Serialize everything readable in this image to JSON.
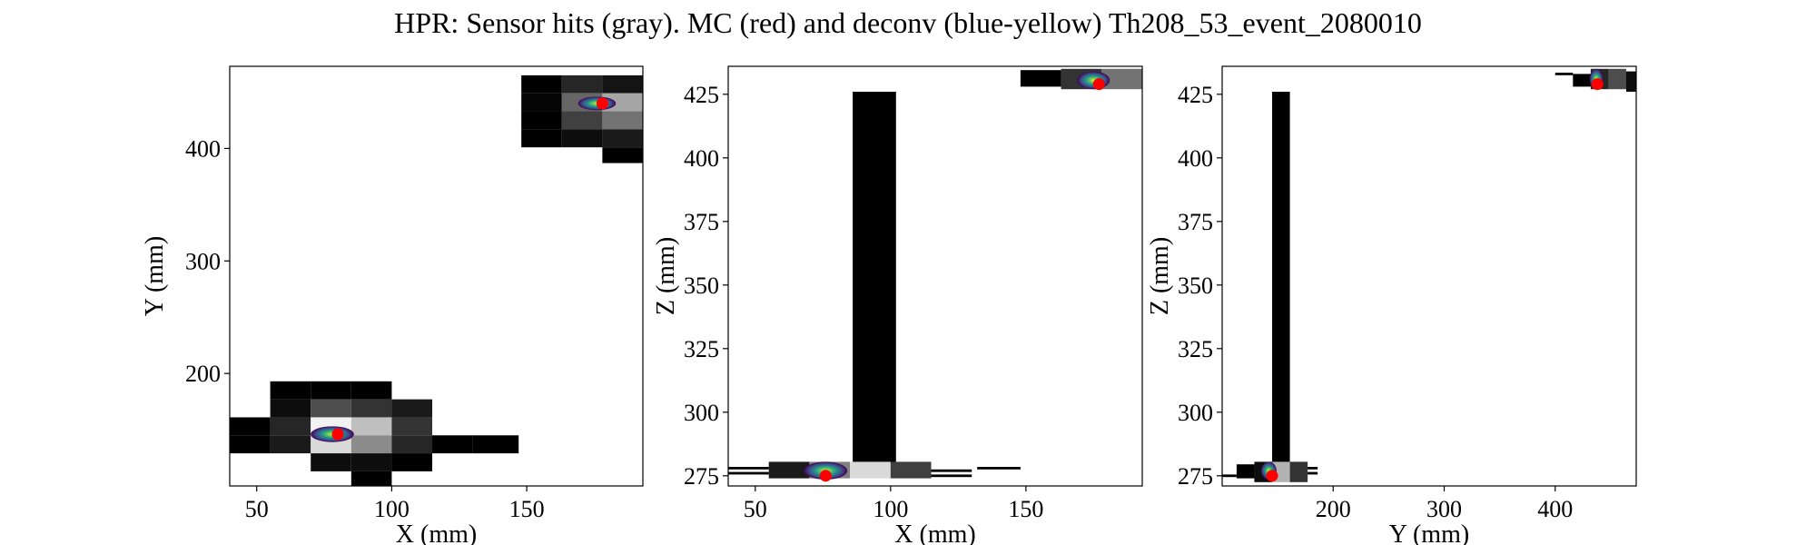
{
  "chart_data": {
    "type": "heatmap",
    "title": "HPR: Sensor hits (gray). MC (red) and deconv (blue-yellow) Th208_53_event_2080010",
    "colors": {
      "mc": "#ff0000",
      "sensor_scale": "gray",
      "deconv_scale": "viridis"
    },
    "panels": [
      {
        "id": "xy",
        "xlabel": "X (mm)",
        "ylabel": "Y (mm)",
        "xlim": [
          40,
          193
        ],
        "ylim": [
          100,
          473
        ],
        "xticks": [
          50,
          100,
          150
        ],
        "yticks": [
          200,
          300,
          400
        ],
        "sensor_hits": [
          {
            "x": 148,
            "y": 465,
            "w": 15,
            "h": 16,
            "v": 0.0
          },
          {
            "x": 163,
            "y": 465,
            "w": 15,
            "h": 16,
            "v": 0.15
          },
          {
            "x": 178,
            "y": 465,
            "w": 15,
            "h": 16,
            "v": 0.08
          },
          {
            "x": 148,
            "y": 449,
            "w": 15,
            "h": 16,
            "v": 0.02
          },
          {
            "x": 163,
            "y": 449,
            "w": 15,
            "h": 16,
            "v": 0.4
          },
          {
            "x": 178,
            "y": 449,
            "w": 15,
            "h": 16,
            "v": 0.65
          },
          {
            "x": 148,
            "y": 433,
            "w": 15,
            "h": 16,
            "v": 0.0
          },
          {
            "x": 163,
            "y": 433,
            "w": 15,
            "h": 16,
            "v": 0.25
          },
          {
            "x": 178,
            "y": 433,
            "w": 15,
            "h": 16,
            "v": 0.45
          },
          {
            "x": 148,
            "y": 417,
            "w": 15,
            "h": 16,
            "v": 0.0
          },
          {
            "x": 163,
            "y": 417,
            "w": 15,
            "h": 16,
            "v": 0.05
          },
          {
            "x": 178,
            "y": 417,
            "w": 15,
            "h": 16,
            "v": 0.1
          },
          {
            "x": 178,
            "y": 401,
            "w": 15,
            "h": 14,
            "v": 0.0
          },
          {
            "x": 55,
            "y": 193,
            "w": 15,
            "h": 16,
            "v": 0.0
          },
          {
            "x": 70,
            "y": 193,
            "w": 15,
            "h": 16,
            "v": 0.0
          },
          {
            "x": 85,
            "y": 193,
            "w": 15,
            "h": 16,
            "v": 0.0
          },
          {
            "x": 55,
            "y": 177,
            "w": 15,
            "h": 16,
            "v": 0.05
          },
          {
            "x": 70,
            "y": 177,
            "w": 15,
            "h": 16,
            "v": 0.3
          },
          {
            "x": 85,
            "y": 177,
            "w": 15,
            "h": 16,
            "v": 0.2
          },
          {
            "x": 100,
            "y": 177,
            "w": 15,
            "h": 16,
            "v": 0.1
          },
          {
            "x": 40,
            "y": 161,
            "w": 15,
            "h": 16,
            "v": 0.0
          },
          {
            "x": 55,
            "y": 161,
            "w": 15,
            "h": 16,
            "v": 0.15
          },
          {
            "x": 70,
            "y": 161,
            "w": 15,
            "h": 16,
            "v": 0.95
          },
          {
            "x": 85,
            "y": 161,
            "w": 15,
            "h": 16,
            "v": 0.75
          },
          {
            "x": 100,
            "y": 161,
            "w": 15,
            "h": 16,
            "v": 0.2
          },
          {
            "x": 40,
            "y": 145,
            "w": 15,
            "h": 16,
            "v": 0.0
          },
          {
            "x": 55,
            "y": 145,
            "w": 15,
            "h": 16,
            "v": 0.1
          },
          {
            "x": 70,
            "y": 145,
            "w": 15,
            "h": 16,
            "v": 0.85
          },
          {
            "x": 85,
            "y": 145,
            "w": 15,
            "h": 16,
            "v": 0.55
          },
          {
            "x": 100,
            "y": 145,
            "w": 15,
            "h": 16,
            "v": 0.15
          },
          {
            "x": 115,
            "y": 145,
            "w": 15,
            "h": 16,
            "v": 0.0
          },
          {
            "x": 130,
            "y": 145,
            "w": 17,
            "h": 16,
            "v": 0.0
          },
          {
            "x": 70,
            "y": 129,
            "w": 15,
            "h": 16,
            "v": 0.05
          },
          {
            "x": 85,
            "y": 129,
            "w": 15,
            "h": 16,
            "v": 0.05
          },
          {
            "x": 100,
            "y": 129,
            "w": 15,
            "h": 16,
            "v": 0.0
          },
          {
            "x": 85,
            "y": 113,
            "w": 15,
            "h": 13,
            "v": 0.0
          }
        ],
        "deconv_blobs": [
          {
            "x": 176,
            "y": 440,
            "rx": 7,
            "ry": 6
          },
          {
            "x": 78,
            "y": 146,
            "rx": 8,
            "ry": 7
          }
        ],
        "mc_points": [
          {
            "x": 178,
            "y": 440
          },
          {
            "x": 80,
            "y": 146
          }
        ]
      },
      {
        "id": "xz",
        "xlabel": "X (mm)",
        "ylabel": "Z (mm)",
        "xlim": [
          40,
          193
        ],
        "ylim": [
          271,
          436
        ],
        "xticks": [
          50,
          100,
          150
        ],
        "yticks": [
          275,
          300,
          325,
          350,
          375,
          400,
          425
        ],
        "sensor_hits": [
          {
            "x": 86,
            "y": 426,
            "w": 16,
            "h": 146,
            "v": 0.0
          },
          {
            "x": 55,
            "y": 280.5,
            "w": 15,
            "h": 6.5,
            "v": 0.1
          },
          {
            "x": 70,
            "y": 280.5,
            "w": 15,
            "h": 6.5,
            "v": 0.5
          },
          {
            "x": 85,
            "y": 280.5,
            "w": 15,
            "h": 6.5,
            "v": 0.85
          },
          {
            "x": 100,
            "y": 280.5,
            "w": 15,
            "h": 6.5,
            "v": 0.25
          },
          {
            "x": 40,
            "y": 278.5,
            "w": 15,
            "h": 1,
            "v": 0.0
          },
          {
            "x": 40,
            "y": 276.5,
            "w": 15,
            "h": 1,
            "v": 0.0
          },
          {
            "x": 115,
            "y": 277.5,
            "w": 15,
            "h": 1,
            "v": 0.0
          },
          {
            "x": 115,
            "y": 275.5,
            "w": 15,
            "h": 1,
            "v": 0.0
          },
          {
            "x": 132,
            "y": 278.5,
            "w": 16,
            "h": 1,
            "v": 0.0
          },
          {
            "x": 148,
            "y": 434.5,
            "w": 15,
            "h": 6.5,
            "v": 0.0
          },
          {
            "x": 163,
            "y": 435,
            "w": 15,
            "h": 8,
            "v": 0.2
          },
          {
            "x": 178,
            "y": 435,
            "w": 15,
            "h": 8,
            "v": 0.45
          }
        ],
        "deconv_blobs": [
          {
            "x": 175,
            "y": 430.5,
            "rx": 6,
            "ry": 3.5
          },
          {
            "x": 76,
            "y": 277,
            "rx": 8,
            "ry": 3.5
          }
        ],
        "mc_points": [
          {
            "x": 177,
            "y": 429
          },
          {
            "x": 76,
            "y": 275
          }
        ]
      },
      {
        "id": "yz",
        "xlabel": "Y (mm)",
        "ylabel": "Z (mm)",
        "xlim": [
          100,
          473
        ],
        "ylim": [
          271,
          436
        ],
        "xticks": [
          200,
          300,
          400
        ],
        "yticks": [
          275,
          300,
          325,
          350,
          375,
          400,
          425
        ],
        "sensor_hits": [
          {
            "x": 145,
            "y": 426,
            "w": 16,
            "h": 146,
            "v": 0.0
          },
          {
            "x": 129,
            "y": 280.5,
            "w": 16,
            "h": 8,
            "v": 0.05
          },
          {
            "x": 145,
            "y": 280.5,
            "w": 16,
            "h": 8,
            "v": 0.7
          },
          {
            "x": 161,
            "y": 280.5,
            "w": 16,
            "h": 8,
            "v": 0.2
          },
          {
            "x": 113,
            "y": 279.5,
            "w": 16,
            "h": 5.5,
            "v": 0.0
          },
          {
            "x": 100,
            "y": 275.5,
            "w": 13,
            "h": 1,
            "v": 0.0
          },
          {
            "x": 177,
            "y": 278.5,
            "w": 9,
            "h": 1,
            "v": 0.0
          },
          {
            "x": 177,
            "y": 276.5,
            "w": 9,
            "h": 1,
            "v": 0.0
          },
          {
            "x": 400,
            "y": 433.5,
            "w": 16,
            "h": 1,
            "v": 0.0
          },
          {
            "x": 416,
            "y": 433,
            "w": 16,
            "h": 5,
            "v": 0.0
          },
          {
            "x": 432,
            "y": 435,
            "w": 16,
            "h": 8,
            "v": 0.15
          },
          {
            "x": 448,
            "y": 435,
            "w": 16,
            "h": 8,
            "v": 0.3
          },
          {
            "x": 464,
            "y": 434,
            "w": 9,
            "h": 8,
            "v": 0.05
          }
        ],
        "deconv_blobs": [
          {
            "x": 437,
            "y": 431,
            "rx": 6,
            "ry": 4
          },
          {
            "x": 142,
            "y": 277,
            "rx": 7,
            "ry": 3.5
          }
        ],
        "mc_points": [
          {
            "x": 438,
            "y": 429
          },
          {
            "x": 145,
            "y": 275
          }
        ]
      }
    ]
  }
}
